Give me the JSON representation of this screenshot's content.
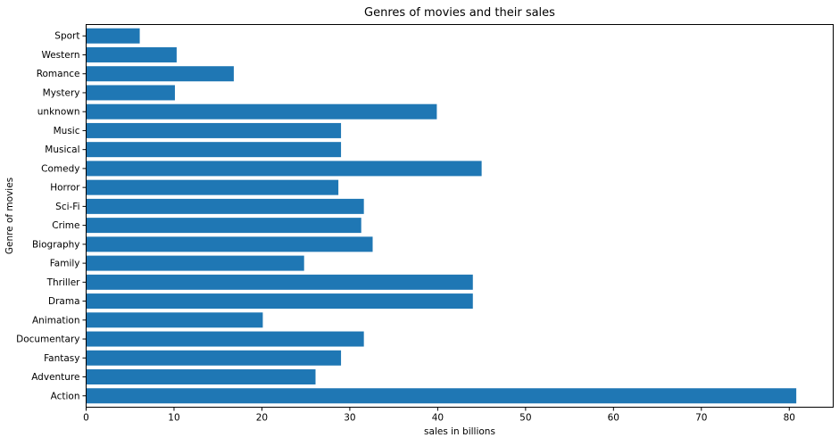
{
  "chart_data": {
    "type": "bar",
    "orientation": "horizontal",
    "title": "Genres of movies and their sales",
    "xlabel": "sales in billions",
    "ylabel": "Genre of movies",
    "categories": [
      "Action",
      "Adventure",
      "Fantasy",
      "Documentary",
      "Animation",
      "Drama",
      "Thriller",
      "Family",
      "Biography",
      "Crime",
      "Sci-Fi",
      "Horror",
      "Comedy",
      "Musical",
      "Music",
      "unknown",
      "Mystery",
      "Romance",
      "Western",
      "Sport"
    ],
    "values": [
      80.8,
      26.1,
      29.0,
      31.6,
      20.1,
      44.0,
      44.0,
      24.8,
      32.6,
      31.3,
      31.6,
      28.7,
      45.0,
      29.0,
      29.0,
      39.9,
      10.1,
      16.8,
      10.3,
      6.1
    ],
    "xlim": [
      0,
      85
    ],
    "xticks": [
      0,
      10,
      20,
      30,
      40,
      50,
      60,
      70,
      80
    ],
    "grid": false,
    "bar_color": "#1f77b4"
  }
}
